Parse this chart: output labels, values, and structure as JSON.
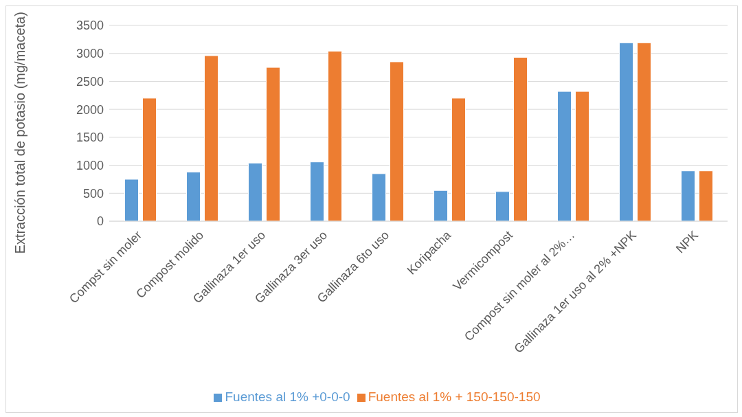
{
  "chart_data": {
    "type": "bar",
    "ylabel": "Extracción total de potasio (mg/maceta)",
    "categories": [
      "Compst sin moler",
      "Compost molido",
      "Gallinaza 1er uso",
      "Gallinaza 3er uso",
      "Gallinaza 6to uso",
      "Koripacha",
      "Vermicompost",
      "Compost sin moler al 2%…",
      "Gallinaza 1er uso al 2% +NPK",
      "NPK"
    ],
    "series": [
      {
        "name": "Fuentes  al 1% +0-0-0",
        "color": "#5b9bd5",
        "values": [
          750,
          880,
          1040,
          1060,
          850,
          550,
          530,
          2320,
          3190,
          900
        ]
      },
      {
        "name": "Fuentes al 1% + 150-150-150",
        "color": "#ed7d31",
        "values": [
          2200,
          2960,
          2750,
          3040,
          2850,
          2200,
          2930,
          2320,
          3190,
          900
        ]
      }
    ],
    "ylim": [
      0,
      3500
    ],
    "yticks": [
      0,
      500,
      1000,
      1500,
      2000,
      2500,
      3000,
      3500
    ],
    "grid": "y",
    "legend": "bottom"
  }
}
